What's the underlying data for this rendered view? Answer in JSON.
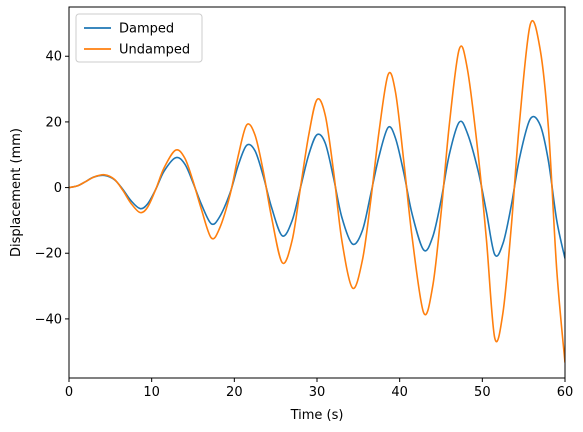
{
  "chart_data": {
    "type": "line",
    "title": "",
    "xlabel": "Time (s)",
    "ylabel": "Displacement (mm)",
    "xlim": [
      0,
      60
    ],
    "ylim": [
      -58,
      55
    ],
    "xticks": [
      0,
      10,
      20,
      30,
      40,
      50,
      60
    ],
    "yticks": [
      -40,
      -20,
      0,
      20,
      40
    ],
    "xtick_labels": [
      "0",
      "10",
      "20",
      "30",
      "40",
      "50",
      "60"
    ],
    "ytick_labels": [
      "−40",
      "−20",
      "0",
      "20",
      "40"
    ],
    "grid": false,
    "legend": {
      "placement": "top-left",
      "entries": [
        "Damped",
        "Undamped"
      ]
    },
    "series": [
      {
        "name": "Damped",
        "color": "#1f77b4",
        "x": [
          0,
          1,
          2,
          3,
          4.3,
          5.5,
          6.5,
          7.5,
          8.6,
          9.5,
          10.5,
          11.5,
          12.9,
          14,
          15,
          16,
          17.2,
          18.2,
          19.5,
          20.5,
          21.5,
          22.5,
          23.5,
          24.5,
          25.8,
          27,
          28,
          29,
          30,
          31,
          32,
          33,
          34.3,
          35.5,
          36.5,
          37.5,
          38.6,
          39.5,
          40.5,
          41.5,
          42.9,
          44,
          45,
          46,
          47.2,
          48.2,
          49.5,
          50.5,
          51.5,
          52.5,
          53.5,
          54.5,
          55.8,
          57,
          58,
          59,
          60
        ],
        "y": [
          0,
          0.5,
          1.8,
          3.2,
          3.7,
          2.4,
          -0.5,
          -4,
          -6.4,
          -5,
          -0.5,
          5,
          9.1,
          7.2,
          1.5,
          -5,
          -11,
          -9,
          -1.5,
          7,
          12.9,
          11.2,
          3.5,
          -6,
          -14.7,
          -10,
          0,
          10,
          16.1,
          13.5,
          3,
          -9,
          -17.2,
          -13,
          -2,
          9.5,
          18.3,
          15,
          4.5,
          -8,
          -19,
          -15,
          -4,
          10,
          19.9,
          16.5,
          5,
          -7.5,
          -20.4,
          -17,
          -5.5,
          9,
          20.9,
          19,
          8,
          -10,
          -21.6
        ]
      },
      {
        "name": "Undamped",
        "color": "#ff7f0e",
        "x": [
          0,
          1,
          2,
          3,
          4.3,
          5.5,
          6.5,
          7.5,
          8.6,
          9.5,
          10.5,
          11.5,
          12.9,
          14,
          15,
          16,
          17.2,
          18.2,
          19.5,
          20.5,
          21.5,
          22.5,
          23.5,
          24.5,
          25.8,
          27,
          28,
          29,
          30,
          31,
          32,
          33,
          34.3,
          35.5,
          36.5,
          37.5,
          38.6,
          39.5,
          40.5,
          41.5,
          42.9,
          44,
          45,
          46,
          47.2,
          48.2,
          49.5,
          50.5,
          51.5,
          52.5,
          53.5,
          54.5,
          55.8,
          57,
          58,
          59,
          60
        ],
        "y": [
          0,
          0.5,
          1.8,
          3.2,
          3.9,
          2.5,
          -0.8,
          -4.8,
          -7.6,
          -6,
          -0.5,
          6,
          11.4,
          9,
          2,
          -6.5,
          -15.3,
          -12.5,
          -2,
          10,
          19.1,
          16,
          5,
          -9,
          -22.9,
          -16,
          0,
          16,
          26.8,
          22,
          5,
          -16,
          -30.6,
          -22,
          -4,
          17,
          34.4,
          29,
          8,
          -15,
          -38.1,
          -30,
          -8,
          19,
          42.1,
          36,
          10,
          -16,
          -45.8,
          -38,
          -12,
          20,
          49.7,
          42,
          18,
          -25,
          -53.3
        ]
      }
    ]
  }
}
